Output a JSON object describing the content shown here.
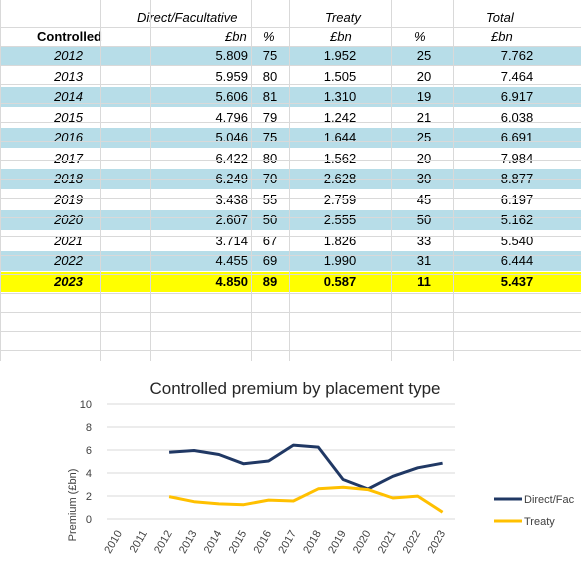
{
  "table": {
    "header_row1": {
      "direct": "Direct/Facultative",
      "treaty": "Treaty",
      "total": "Total"
    },
    "header_row2": {
      "controlled": "Controlled",
      "direct_unit": "£bn",
      "direct_pct": "%",
      "treaty_unit": "£bn",
      "treaty_pct": "%",
      "total_unit": "£bn"
    },
    "rows": [
      {
        "year": "2012",
        "direct": "5.809",
        "direct_pct": "75",
        "treaty": "1.952",
        "treaty_pct": "25",
        "total": "7.762"
      },
      {
        "year": "2013",
        "direct": "5.959",
        "direct_pct": "80",
        "treaty": "1.505",
        "treaty_pct": "20",
        "total": "7.464"
      },
      {
        "year": "2014",
        "direct": "5.606",
        "direct_pct": "81",
        "treaty": "1.310",
        "treaty_pct": "19",
        "total": "6.917"
      },
      {
        "year": "2015",
        "direct": "4.796",
        "direct_pct": "79",
        "treaty": "1.242",
        "treaty_pct": "21",
        "total": "6.038"
      },
      {
        "year": "2016",
        "direct": "5.046",
        "direct_pct": "75",
        "treaty": "1.644",
        "treaty_pct": "25",
        "total": "6.691"
      },
      {
        "year": "2017",
        "direct": "6.422",
        "direct_pct": "80",
        "treaty": "1.562",
        "treaty_pct": "20",
        "total": "7.984"
      },
      {
        "year": "2018",
        "direct": "6.249",
        "direct_pct": "70",
        "treaty": "2.628",
        "treaty_pct": "30",
        "total": "8.877"
      },
      {
        "year": "2019",
        "direct": "3.438",
        "direct_pct": "55",
        "treaty": "2.759",
        "treaty_pct": "45",
        "total": "6.197"
      },
      {
        "year": "2020",
        "direct": "2.607",
        "direct_pct": "50",
        "treaty": "2.555",
        "treaty_pct": "50",
        "total": "5.162"
      },
      {
        "year": "2021",
        "direct": "3.714",
        "direct_pct": "67",
        "treaty": "1.826",
        "treaty_pct": "33",
        "total": "5.540"
      },
      {
        "year": "2022",
        "direct": "4.455",
        "direct_pct": "69",
        "treaty": "1.990",
        "treaty_pct": "31",
        "total": "6.444"
      },
      {
        "year": "2023",
        "direct": "4.850",
        "direct_pct": "89",
        "treaty": "0.587",
        "treaty_pct": "11",
        "total": "5.437"
      }
    ],
    "row_fill": "#b7dde8",
    "highlight_fill": "#ffff00"
  },
  "chart_data": {
    "type": "line",
    "title": "Controlled premium by placement type",
    "xlabel": "",
    "ylabel": "Premium (£bn)",
    "categories": [
      "2010",
      "2011",
      "2012",
      "2013",
      "2014",
      "2015",
      "2016",
      "2017",
      "2018",
      "2019",
      "2020",
      "2021",
      "2022",
      "2023"
    ],
    "yticks": [
      "0",
      "2",
      "4",
      "6",
      "8",
      "10"
    ],
    "ylim": [
      0,
      10
    ],
    "grid": true,
    "legend_position": "right",
    "series": [
      {
        "name": "Direct/Fac",
        "color": "#203864",
        "values": [
          null,
          null,
          5.809,
          5.959,
          5.606,
          4.796,
          5.046,
          6.422,
          6.249,
          3.438,
          2.607,
          3.714,
          4.455,
          4.85
        ]
      },
      {
        "name": "Treaty",
        "color": "#ffc000",
        "values": [
          null,
          null,
          1.952,
          1.505,
          1.31,
          1.242,
          1.644,
          1.562,
          2.628,
          2.759,
          2.555,
          1.826,
          1.99,
          0.587
        ]
      }
    ]
  }
}
